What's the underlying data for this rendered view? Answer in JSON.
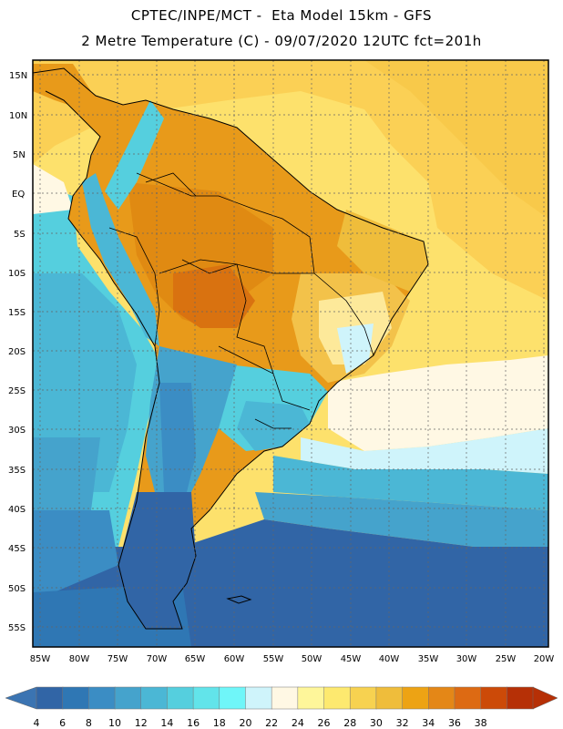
{
  "header": {
    "title_line1": "CPTEC/INPE/MCT -  Eta Model 15km - GFS",
    "title_line2": "2 Metre Temperature (C) - 09/07/2020 12UTC fct=201h"
  },
  "map": {
    "lat_labels": [
      "15N",
      "10N",
      "5N",
      "EQ",
      "5S",
      "10S",
      "15S",
      "20S",
      "25S",
      "30S",
      "35S",
      "40S",
      "45S",
      "50S",
      "55S"
    ],
    "lon_labels": [
      "85W",
      "80W",
      "75W",
      "70W",
      "65W",
      "60W",
      "55W",
      "50W",
      "45W",
      "40W",
      "35W",
      "30W",
      "25W",
      "20W"
    ],
    "ocean_color": "#2e63a8",
    "land_color": "#e89a1a"
  },
  "colorbar": {
    "labels": [
      "4",
      "6",
      "8",
      "10",
      "12",
      "14",
      "16",
      "18",
      "20",
      "22",
      "24",
      "26",
      "28",
      "30",
      "32",
      "34",
      "36",
      "38"
    ],
    "colors": [
      "#3165a6",
      "#2f77b4",
      "#3b8dc4",
      "#45a3cc",
      "#4bb7d5",
      "#55cfde",
      "#62e4ea",
      "#6ff6f9",
      "#cff4fb",
      "#fff8e4",
      "#fef69a",
      "#fde96f",
      "#f7d250",
      "#efbd3b",
      "#eda314",
      "#e48717",
      "#dd6a13",
      "#cc4a08",
      "#b63006"
    ],
    "left_arrow_color": "#3b74b2",
    "right_arrow_color": "#b63006"
  }
}
